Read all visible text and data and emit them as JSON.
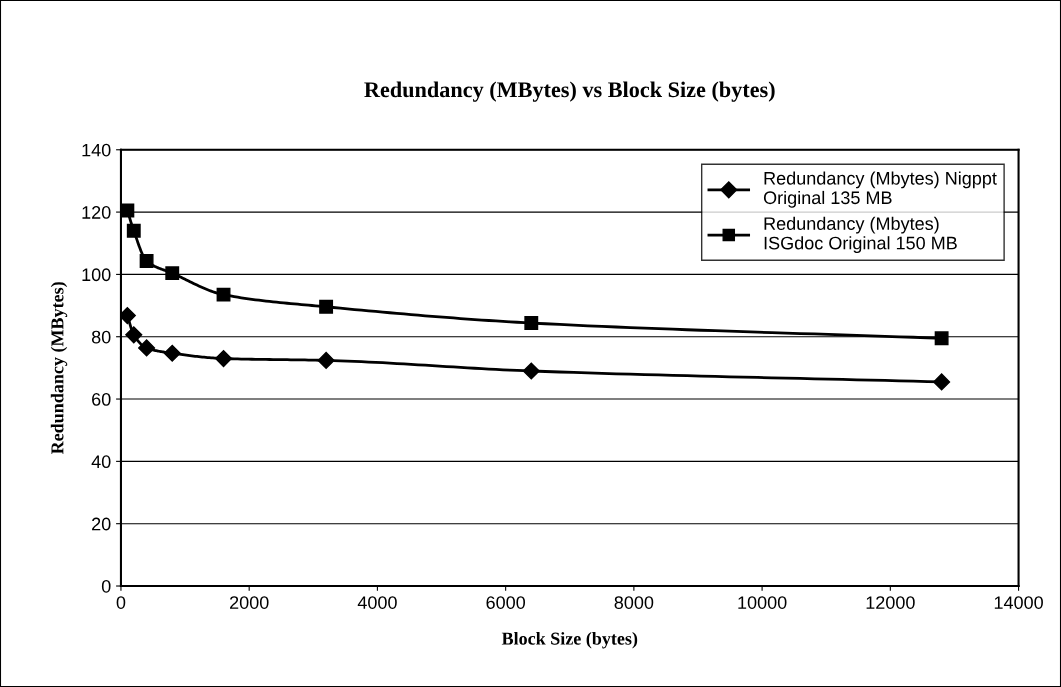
{
  "chart_data": {
    "type": "line",
    "title": "Redundancy (MBytes) vs Block Size (bytes)",
    "xlabel": "Block Size (bytes)",
    "ylabel": "Redundancy (MBytes)",
    "x": [
      100,
      200,
      400,
      800,
      1600,
      3200,
      6400,
      12800
    ],
    "series": [
      {
        "name": "Redundancy (Mbytes) Nigppt\nOriginal 135 MB",
        "color": "#000000",
        "marker": "diamond",
        "values": [
          86.8,
          80.6,
          76.4,
          74.7,
          73,
          72.4,
          69,
          65.5
        ]
      },
      {
        "name": "Redundancy (Mbytes)\nISGdoc Original 150 MB",
        "color": "#000000",
        "marker": "square",
        "values": [
          120.5,
          114,
          104.3,
          100.4,
          93.5,
          89.6,
          84.4,
          79.5
        ]
      }
    ],
    "xlim": [
      0,
      14000
    ],
    "xticks": [
      0,
      2000,
      4000,
      6000,
      8000,
      10000,
      12000,
      14000
    ],
    "ylim": [
      0,
      140
    ],
    "yticks": [
      0,
      20,
      40,
      60,
      80,
      100,
      120,
      140
    ],
    "grid": "y",
    "legend": "top right",
    "line_style": "solid"
  }
}
